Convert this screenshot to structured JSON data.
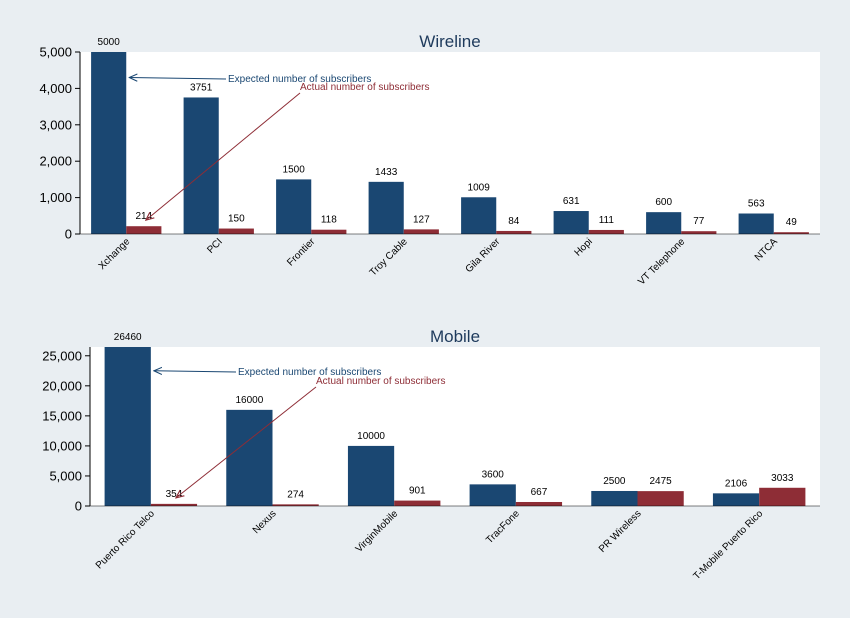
{
  "colors": {
    "expected": "#1a4772",
    "actual": "#8e2d36",
    "background": "#e9eef2",
    "plot_background": "#ffffff",
    "title": "#1e3a5c"
  },
  "chart_data": [
    {
      "type": "bar",
      "title": "Wireline",
      "categories": [
        "Xchange",
        "PCI",
        "Frontier",
        "Troy Cable",
        "Gila River",
        "Hopi",
        "VT Telephone",
        "NTCA"
      ],
      "series": [
        {
          "values": [
            5000,
            3751,
            1500,
            1433,
            1009,
            631,
            600,
            563
          ]
        },
        {
          "values": [
            214,
            150,
            118,
            127,
            84,
            111,
            77,
            49
          ]
        }
      ],
      "yticks": [
        0,
        1000,
        2000,
        3000,
        4000,
        5000
      ],
      "ytick_labels": [
        "0",
        "1,000",
        "2,000",
        "3,000",
        "4,000",
        "5,000"
      ],
      "ylim": [
        0,
        5000
      ],
      "annotations": [
        {
          "text": "Expected number of subscribers",
          "target_category": "Xchange",
          "target_series": 0,
          "target_y": 4300
        },
        {
          "text": "Actual number of subscribers",
          "target_category": "Xchange",
          "target_series": 1,
          "target_y": 214
        }
      ],
      "grid": false,
      "legend": "none"
    },
    {
      "type": "bar",
      "title": "Mobile",
      "categories": [
        "Puerto Rico Telco",
        "Nexus",
        "VirginMobile",
        "TracFone",
        "PR Wireless",
        "T-Mobile Puerto Rico"
      ],
      "series": [
        {
          "values": [
            26460,
            16000,
            10000,
            3600,
            2500,
            2106
          ]
        },
        {
          "values": [
            354,
            274,
            901,
            667,
            2475,
            3033
          ]
        }
      ],
      "yticks": [
        0,
        5000,
        10000,
        15000,
        20000,
        25000
      ],
      "ytick_labels": [
        "0",
        "5,000",
        "10,000",
        "15,000",
        "20,000",
        "25,000"
      ],
      "ylim": [
        0,
        26460
      ],
      "annotations": [
        {
          "text": "Expected number of subscribers",
          "target_category": "Puerto Rico Telco",
          "target_series": 0,
          "target_y": 22500
        },
        {
          "text": "Actual number of subscribers",
          "target_category": "Puerto Rico Telco",
          "target_series": 1,
          "target_y": 354
        }
      ],
      "grid": false,
      "legend": "none"
    }
  ]
}
